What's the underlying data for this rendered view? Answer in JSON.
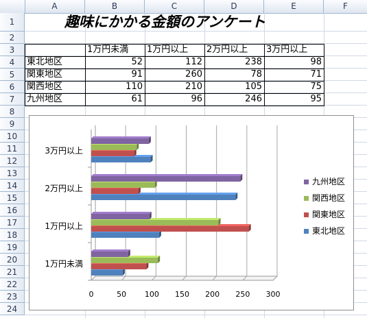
{
  "columns": [
    "A",
    "B",
    "C",
    "D",
    "E",
    "F"
  ],
  "rows": [
    "1",
    "2",
    "3",
    "4",
    "5",
    "6",
    "7",
    "8",
    "9",
    "10",
    "11",
    "12",
    "13",
    "14",
    "15",
    "16",
    "17",
    "18",
    "19",
    "20",
    "21",
    "22",
    "23",
    "24"
  ],
  "sheet_title": "趣味にかかる金額のアンケート",
  "table": {
    "headers": [
      "1万円未満",
      "1万円以上",
      "2万円以上",
      "3万円以上"
    ],
    "rows": [
      {
        "region": "東北地区",
        "values": [
          "52",
          "112",
          "238",
          "98"
        ]
      },
      {
        "region": "関東地区",
        "values": [
          "91",
          "260",
          "78",
          "71"
        ]
      },
      {
        "region": "関西地区",
        "values": [
          "110",
          "210",
          "105",
          "75"
        ]
      },
      {
        "region": "九州地区",
        "values": [
          "61",
          "96",
          "246",
          "95"
        ]
      }
    ]
  },
  "chart_data": {
    "type": "bar",
    "orientation": "horizontal",
    "categories": [
      "1万円未満",
      "1万円以上",
      "2万円以上",
      "3万円以上"
    ],
    "series": [
      {
        "name": "東北地区",
        "values": [
          52,
          112,
          238,
          98
        ],
        "color": "#4f81bd"
      },
      {
        "name": "関東地区",
        "values": [
          91,
          260,
          78,
          71
        ],
        "color": "#c0504d"
      },
      {
        "name": "関西地区",
        "values": [
          110,
          210,
          105,
          75
        ],
        "color": "#9bbb59"
      },
      {
        "name": "九州地区",
        "values": [
          61,
          96,
          246,
          95
        ],
        "color": "#8064a2"
      }
    ],
    "xlim": [
      0,
      300
    ],
    "xticks": [
      "0",
      "50",
      "100",
      "150",
      "200",
      "250",
      "300"
    ],
    "gridlines": true,
    "legend_position": "right",
    "legend_order": [
      "九州地区",
      "関西地区",
      "関東地区",
      "東北地区"
    ]
  }
}
